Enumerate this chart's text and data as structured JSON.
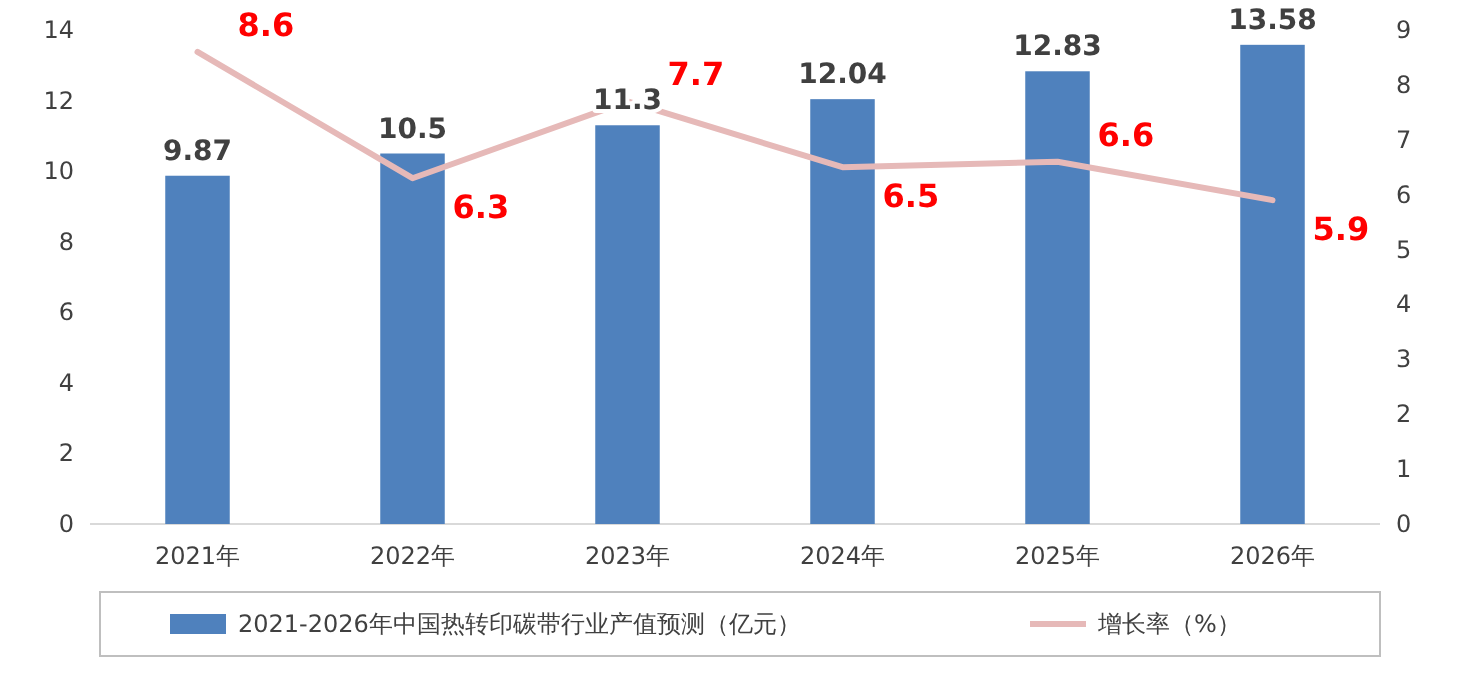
{
  "chart_data": {
    "type": "bar",
    "categories": [
      "2021年",
      "2022年",
      "2023年",
      "2024年",
      "2025年",
      "2026年"
    ],
    "series": [
      {
        "name": "2021-2026年中国热转印碳带行业产值预测（亿元）",
        "color": "#4f81bd",
        "values": [
          9.87,
          10.5,
          11.3,
          12.04,
          12.83,
          13.58
        ]
      },
      {
        "name": "增长率（%）",
        "type": "line",
        "axis": "y2",
        "color": "#e6b9b8",
        "values": [
          8.6,
          6.3,
          7.7,
          6.5,
          6.6,
          5.9
        ]
      }
    ],
    "data_labels": true,
    "legend": "bottom",
    "marker": "none",
    "line_style": "solid",
    "ylim": [
      0,
      14
    ],
    "yticks": [
      0,
      2,
      4,
      6,
      8,
      10,
      12,
      14
    ],
    "y2lim": [
      0,
      9
    ],
    "y2ticks": [
      0,
      1,
      2,
      3,
      4,
      5,
      6,
      7,
      8,
      9
    ]
  }
}
